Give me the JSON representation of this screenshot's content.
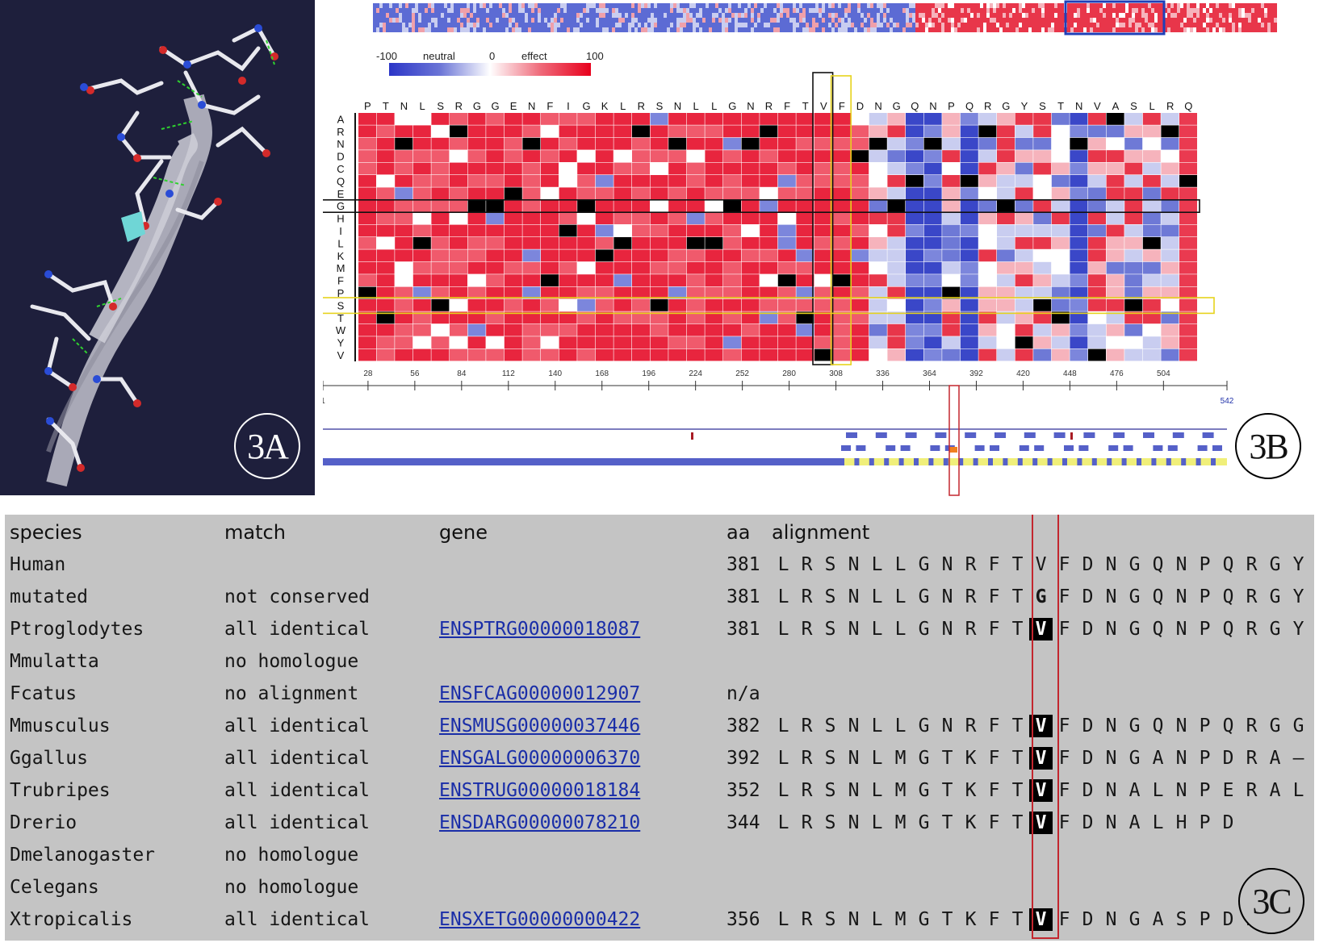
{
  "panels": {
    "a": {
      "badge": "3A"
    },
    "b": {
      "badge": "3B"
    },
    "c": {
      "badge": "3C"
    }
  },
  "legend": {
    "min": "-100",
    "neutral": "neutral",
    "zero": "0",
    "effect": "effect",
    "max": "100",
    "colors": {
      "low": "#2b35c7",
      "mid": "#ffffff",
      "high": "#e8001c"
    }
  },
  "heatmap": {
    "positions": [
      "P",
      "T",
      "N",
      "L",
      "S",
      "R",
      "G",
      "G",
      "E",
      "N",
      "F",
      "I",
      "G",
      "K",
      "L",
      "R",
      "S",
      "N",
      "L",
      "L",
      "G",
      "N",
      "R",
      "F",
      "T",
      "V",
      "F",
      "D",
      "N",
      "G",
      "Q",
      "N",
      "P",
      "Q",
      "R",
      "G",
      "Y",
      "S",
      "T",
      "N",
      "V",
      "A",
      "S",
      "L",
      "R",
      "Q"
    ],
    "substitutions": [
      "A",
      "R",
      "N",
      "D",
      "C",
      "Q",
      "E",
      "G",
      "H",
      "I",
      "L",
      "K",
      "M",
      "F",
      "P",
      "S",
      "T",
      "W",
      "Y",
      "V"
    ],
    "highlighted_position": "V",
    "highlighted_substitution": "G",
    "highlighted_position_2": "F",
    "highlighted_substitution_2": "S",
    "axis_ticks": [
      "1",
      "28",
      "56",
      "84",
      "112",
      "140",
      "168",
      "196",
      "224",
      "252",
      "280",
      "308",
      "336",
      "364",
      "392",
      "420",
      "448",
      "476",
      "504",
      "542"
    ]
  },
  "table": {
    "headers": {
      "species": "species",
      "match": "match",
      "gene": "gene",
      "aa": "aa",
      "alignment": "alignment"
    },
    "rows": [
      {
        "species": "Human",
        "match": "",
        "gene": "",
        "aa": "381",
        "seq": "LRSNLLGNRFTVFDNGQNPQRGYS",
        "hl": ""
      },
      {
        "species": "mutated",
        "match": "not conserved",
        "gene": "",
        "aa": "381",
        "seq": "LRSNLLGNRFTGFDNGQNPQRGY",
        "hl": "bold"
      },
      {
        "species": "Ptroglodytes",
        "match": "all identical",
        "gene": "ENSPTRG00000018087",
        "aa": "381",
        "seq": "LRSNLLGNRFTVFDNGQNPQRGY",
        "hl": "black"
      },
      {
        "species": "Mmulatta",
        "match": "no homologue",
        "gene": "",
        "aa": "",
        "seq": "",
        "hl": ""
      },
      {
        "species": "Fcatus",
        "match": "no alignment",
        "gene": "ENSFCAG00000012907",
        "aa": "n/a",
        "seq": "",
        "hl": ""
      },
      {
        "species": "Mmusculus",
        "match": "all identical",
        "gene": "ENSMUSG00000037446",
        "aa": "382",
        "seq": "LRSNLLGNRFTVFDNGQNPQRGG",
        "hl": "black"
      },
      {
        "species": "Ggallus",
        "match": "all identical",
        "gene": "ENSGALG00000006370",
        "aa": "392",
        "seq": "LRSNLMGTKFTVFDNGANPDRA–",
        "hl": "black"
      },
      {
        "species": "Trubripes",
        "match": "all identical",
        "gene": "ENSTRUG00000018184",
        "aa": "352",
        "seq": "LRSNLMGTKFTVFDNALNPERAL",
        "hl": "black"
      },
      {
        "species": "Drerio",
        "match": "all identical",
        "gene": "ENSDARG00000078210",
        "aa": "344",
        "seq": "LRSNLMGTKFTVFDNALHPD",
        "hl": "black"
      },
      {
        "species": "Dmelanogaster",
        "match": "no homologue",
        "gene": "",
        "aa": "",
        "seq": "",
        "hl": ""
      },
      {
        "species": "Celegans",
        "match": "no homologue",
        "gene": "",
        "aa": "",
        "seq": "",
        "hl": ""
      },
      {
        "species": "Xtropicalis",
        "match": "all identical",
        "gene": "ENSXETG00000000422",
        "aa": "356",
        "seq": "LRSNLMGTKFTVFDNGASPDK",
        "hl": "black"
      }
    ]
  }
}
